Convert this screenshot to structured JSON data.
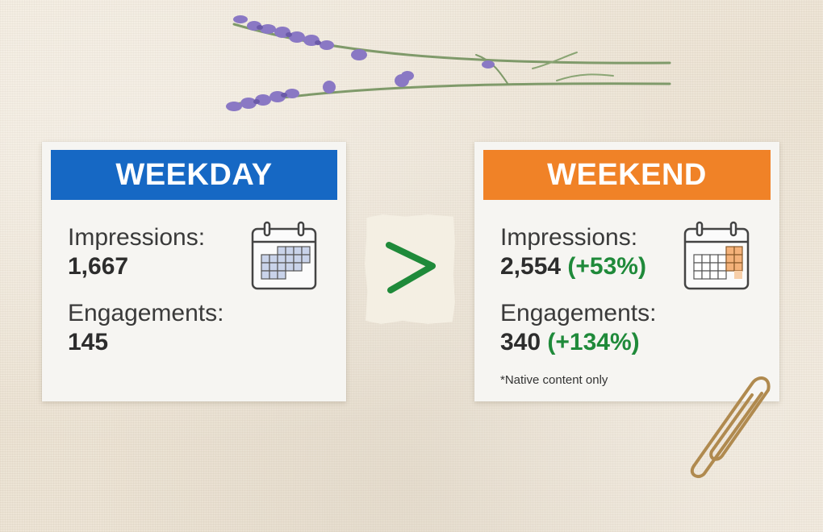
{
  "weekday": {
    "title": "WEEKDAY",
    "impressions_label": "Impressions:",
    "impressions_value": "1,667",
    "engagements_label": "Engagements:",
    "engagements_value": "145",
    "banner_color": "#1668c4"
  },
  "weekend": {
    "title": "WEEKEND",
    "impressions_label": "Impressions:",
    "impressions_value": "2,554",
    "impressions_delta": "(+53%)",
    "engagements_label": "Engagements:",
    "engagements_value": "340",
    "engagements_delta": "(+134%)",
    "footnote": "*Native content only",
    "banner_color": "#f08227",
    "delta_color": "#1f8a3a"
  },
  "comparison": {
    "symbol": ">",
    "symbol_color": "#1f8a3a"
  },
  "icons": [
    "calendar-icon",
    "greater-than-icon",
    "lavander-sprig",
    "paperclip"
  ]
}
